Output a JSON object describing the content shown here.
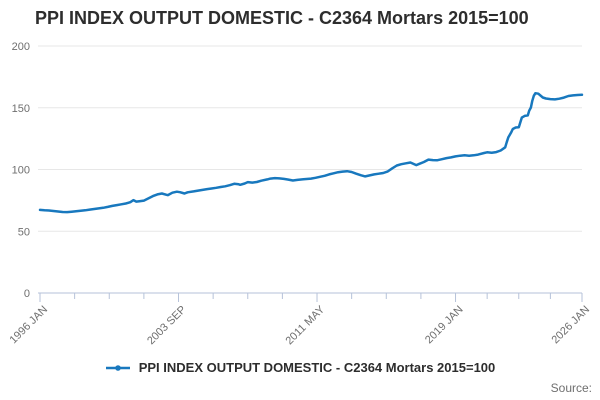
{
  "chart": {
    "title": "PPI INDEX OUTPUT DOMESTIC - C2364 Mortars 2015=100",
    "legend_label": "PPI INDEX OUTPUT DOMESTIC - C2364 Mortars 2015=100"
  },
  "footer": {
    "source_label": "Source:"
  },
  "colors": {
    "line": "#1878be",
    "grid": "#e7e7e7",
    "axis": "#b6c2d9",
    "label_gray": "#6f6f6f",
    "title_dark": "#2d2d2d"
  },
  "chart_data": {
    "type": "line",
    "title": "PPI INDEX OUTPUT DOMESTIC - C2364 Mortars 2015=100",
    "xlabel": "",
    "ylabel": "",
    "x_unit": "decimal_year_monthly_index",
    "xlim": [
      1996.0,
      2026.0
    ],
    "ylim": [
      0,
      200
    ],
    "grid": "horizontal",
    "legend_position": "bottom-center",
    "yticks": [
      0,
      50,
      100,
      150,
      200
    ],
    "xticks": [
      {
        "x": 1996.0,
        "label": "1996 JAN"
      },
      {
        "x": 2003.667,
        "label": "2003 SEP"
      },
      {
        "x": 2011.333,
        "label": "2011 MAY"
      },
      {
        "x": 2019.0,
        "label": "2019 JAN"
      },
      {
        "x": 2026.0,
        "label": "2026 JAN"
      }
    ],
    "minor_ticks_between_majors": 3,
    "series": [
      {
        "name": "PPI INDEX OUTPUT DOMESTIC - C2364 Mortars 2015=100",
        "color": "#1878be",
        "points": [
          [
            1996.0,
            67.3
          ],
          [
            1996.25,
            67.0
          ],
          [
            1996.5,
            66.8
          ],
          [
            1996.75,
            66.4
          ],
          [
            1997.0,
            66.0
          ],
          [
            1997.25,
            65.6
          ],
          [
            1997.5,
            65.5
          ],
          [
            1997.75,
            65.8
          ],
          [
            1998.0,
            66.2
          ],
          [
            1998.25,
            66.6
          ],
          [
            1998.5,
            67.0
          ],
          [
            1998.75,
            67.5
          ],
          [
            1999.0,
            68.0
          ],
          [
            1999.25,
            68.5
          ],
          [
            1999.5,
            69.0
          ],
          [
            1999.75,
            69.7
          ],
          [
            2000.0,
            70.5
          ],
          [
            2000.25,
            71.2
          ],
          [
            2000.5,
            71.8
          ],
          [
            2000.75,
            72.5
          ],
          [
            2001.0,
            73.5
          ],
          [
            2001.17,
            75.2
          ],
          [
            2001.33,
            74.0
          ],
          [
            2001.5,
            74.3
          ],
          [
            2001.75,
            74.8
          ],
          [
            2002.0,
            76.6
          ],
          [
            2002.25,
            78.5
          ],
          [
            2002.5,
            79.8
          ],
          [
            2002.75,
            80.6
          ],
          [
            2003.0,
            79.5
          ],
          [
            2003.08,
            79.3
          ],
          [
            2003.33,
            81.2
          ],
          [
            2003.58,
            82.0
          ],
          [
            2003.75,
            81.6
          ],
          [
            2004.0,
            80.6
          ],
          [
            2004.17,
            81.5
          ],
          [
            2004.5,
            82.3
          ],
          [
            2004.75,
            82.9
          ],
          [
            2005.0,
            83.5
          ],
          [
            2005.25,
            84.1
          ],
          [
            2005.5,
            84.6
          ],
          [
            2005.75,
            85.2
          ],
          [
            2006.0,
            85.8
          ],
          [
            2006.25,
            86.4
          ],
          [
            2006.5,
            87.3
          ],
          [
            2006.75,
            88.4
          ],
          [
            2007.0,
            88.0
          ],
          [
            2007.08,
            87.6
          ],
          [
            2007.33,
            88.7
          ],
          [
            2007.5,
            89.8
          ],
          [
            2007.75,
            89.4
          ],
          [
            2008.0,
            89.9
          ],
          [
            2008.25,
            90.9
          ],
          [
            2008.58,
            92.0
          ],
          [
            2008.75,
            92.6
          ],
          [
            2009.0,
            93.0
          ],
          [
            2009.25,
            92.8
          ],
          [
            2009.5,
            92.4
          ],
          [
            2009.75,
            91.8
          ],
          [
            2010.0,
            91.1
          ],
          [
            2010.25,
            91.6
          ],
          [
            2010.58,
            92.1
          ],
          [
            2010.75,
            92.3
          ],
          [
            2011.0,
            92.6
          ],
          [
            2011.25,
            93.3
          ],
          [
            2011.5,
            94.1
          ],
          [
            2011.75,
            94.9
          ],
          [
            2012.0,
            96.0
          ],
          [
            2012.25,
            96.9
          ],
          [
            2012.5,
            97.8
          ],
          [
            2012.75,
            98.3
          ],
          [
            2013.0,
            98.6
          ],
          [
            2013.25,
            98.0
          ],
          [
            2013.5,
            96.6
          ],
          [
            2013.75,
            95.4
          ],
          [
            2014.0,
            94.4
          ],
          [
            2014.25,
            95.2
          ],
          [
            2014.5,
            96.0
          ],
          [
            2014.75,
            96.6
          ],
          [
            2015.0,
            97.2
          ],
          [
            2015.25,
            98.5
          ],
          [
            2015.5,
            101.0
          ],
          [
            2015.75,
            103.2
          ],
          [
            2016.0,
            104.3
          ],
          [
            2016.25,
            105.0
          ],
          [
            2016.5,
            105.7
          ],
          [
            2016.83,
            103.6
          ],
          [
            2017.0,
            104.6
          ],
          [
            2017.25,
            106.1
          ],
          [
            2017.5,
            108.0
          ],
          [
            2017.75,
            107.6
          ],
          [
            2018.0,
            107.5
          ],
          [
            2018.25,
            108.3
          ],
          [
            2018.5,
            109.2
          ],
          [
            2018.75,
            109.8
          ],
          [
            2019.0,
            110.6
          ],
          [
            2019.25,
            111.2
          ],
          [
            2019.5,
            111.5
          ],
          [
            2019.75,
            111.2
          ],
          [
            2020.0,
            111.5
          ],
          [
            2020.25,
            112.1
          ],
          [
            2020.58,
            113.4
          ],
          [
            2020.75,
            113.9
          ],
          [
            2021.0,
            113.6
          ],
          [
            2021.25,
            114.1
          ],
          [
            2021.5,
            115.4
          ],
          [
            2021.75,
            118.0
          ],
          [
            2021.83,
            122.0
          ],
          [
            2021.92,
            126.0
          ],
          [
            2022.08,
            130.0
          ],
          [
            2022.17,
            132.8
          ],
          [
            2022.33,
            134.0
          ],
          [
            2022.5,
            134.2
          ],
          [
            2022.67,
            142.0
          ],
          [
            2022.83,
            143.4
          ],
          [
            2023.0,
            143.8
          ],
          [
            2023.08,
            147.6
          ],
          [
            2023.17,
            150.2
          ],
          [
            2023.25,
            155.6
          ],
          [
            2023.33,
            159.7
          ],
          [
            2023.42,
            161.8
          ],
          [
            2023.58,
            161.4
          ],
          [
            2023.83,
            158.3
          ],
          [
            2024.0,
            157.5
          ],
          [
            2024.25,
            157.0
          ],
          [
            2024.5,
            156.8
          ],
          [
            2024.75,
            157.3
          ],
          [
            2025.0,
            158.2
          ],
          [
            2025.25,
            159.5
          ],
          [
            2025.5,
            160.0
          ],
          [
            2025.75,
            160.3
          ],
          [
            2026.0,
            160.5
          ]
        ]
      }
    ]
  }
}
